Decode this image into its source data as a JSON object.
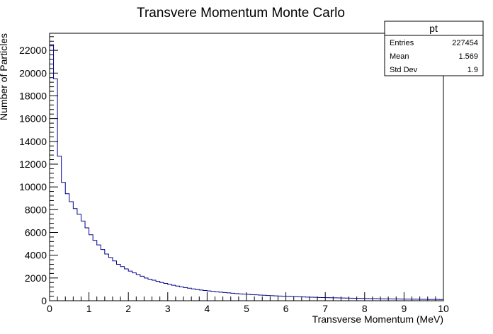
{
  "chart_data": {
    "type": "bar",
    "title": "Transvere Momentum Monte Carlo",
    "xlabel": "Transverse Momentum (MeV)",
    "ylabel": "Number of Particles",
    "xlim": [
      0,
      10
    ],
    "ylim": [
      0,
      23500
    ],
    "x_ticks": [
      "0",
      "1",
      "2",
      "3",
      "4",
      "5",
      "6",
      "7",
      "8",
      "9",
      "10"
    ],
    "y_ticks": [
      "0",
      "2000",
      "4000",
      "6000",
      "8000",
      "10000",
      "12000",
      "14000",
      "16000",
      "18000",
      "20000",
      "22000"
    ],
    "bin_width": 0.1,
    "values": [
      22500,
      19500,
      12700,
      10400,
      9400,
      8700,
      8100,
      7600,
      7000,
      6400,
      5800,
      5300,
      4900,
      4500,
      4100,
      3800,
      3500,
      3200,
      3000,
      2800,
      2600,
      2450,
      2300,
      2150,
      2000,
      1900,
      1800,
      1700,
      1600,
      1520,
      1440,
      1360,
      1290,
      1220,
      1160,
      1100,
      1040,
      990,
      940,
      900,
      860,
      820,
      780,
      750,
      720,
      690,
      660,
      630,
      600,
      580,
      560,
      540,
      520,
      500,
      480,
      460,
      445,
      430,
      415,
      400,
      385,
      370,
      358,
      346,
      334,
      322,
      311,
      300,
      290,
      280,
      270,
      262,
      254,
      246,
      238,
      230,
      223,
      216,
      209,
      202,
      196,
      190,
      184,
      178,
      172,
      167,
      162,
      157,
      152,
      147,
      143,
      139,
      135,
      131,
      127,
      123,
      119,
      116,
      113,
      110
    ],
    "line_color": "#00008b",
    "grid": false,
    "stats_box": {
      "name": "pt",
      "placement": "top-right",
      "rows": [
        {
          "label": "Entries",
          "value": "227454"
        },
        {
          "label": "Mean",
          "value": "1.569"
        },
        {
          "label": "Std Dev",
          "value": "1.9"
        }
      ]
    }
  }
}
